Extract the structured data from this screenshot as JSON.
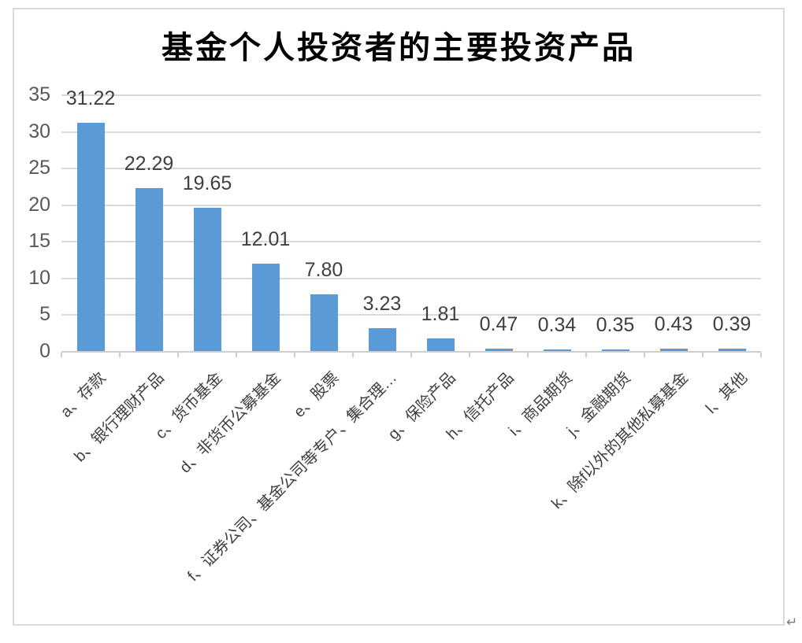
{
  "chart_data": {
    "type": "bar",
    "title": "基金个人投资者的主要投资产品",
    "categories": [
      "a、存款",
      "b、银行理财产品",
      "c、货币基金",
      "d、非货币公募基金",
      "e、股票",
      "f、证券公司、基金公司等专户、集合理…",
      "g、保险产品",
      "h、信托产品",
      "i、商品期货",
      "j、金融期货",
      "k、除f以外的其他私募基金",
      "l、其他"
    ],
    "values": [
      31.22,
      22.29,
      19.65,
      12.01,
      7.8,
      3.23,
      1.81,
      0.47,
      0.34,
      0.35,
      0.43,
      0.39
    ],
    "data_labels": [
      "31.22",
      "22.29",
      "19.65",
      "12.01",
      "7.80",
      "3.23",
      "1.81",
      "0.47",
      "0.34",
      "0.35",
      "0.43",
      "0.39"
    ],
    "xlabel": "",
    "ylabel": "",
    "y_ticks": [
      0,
      5,
      10,
      15,
      20,
      25,
      30,
      35
    ],
    "ylim": [
      0,
      35
    ],
    "grid": true,
    "legend": "none",
    "x_label_rotation_deg": 45,
    "colors": {
      "bar": "#5B9BD5",
      "gridline": "#D9D9D9",
      "axis_line": "#CFCDCD",
      "data_label": "#404040",
      "y_tick_label": "#595959",
      "x_tick_label": "#404040",
      "title": "#000000",
      "frame_border": "#D9D9D9",
      "background": "#FFFFFF"
    }
  },
  "decorations": {
    "paragraph_mark": "↵"
  }
}
